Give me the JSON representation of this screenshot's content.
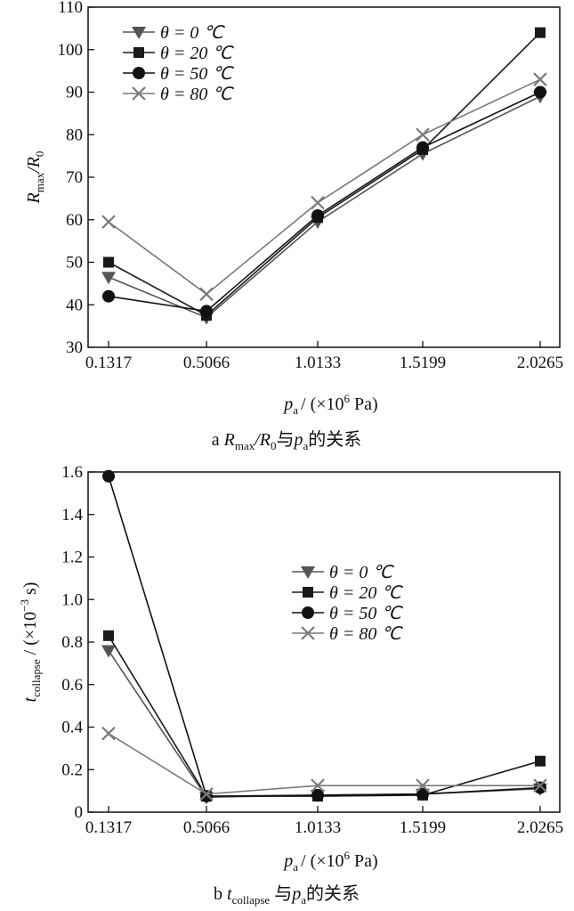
{
  "chart_data": [
    {
      "type": "line",
      "caption": {
        "letter": "a",
        "parts": [
          "R",
          "max",
          "/R",
          "0",
          "与",
          "p",
          "a",
          "的关系"
        ]
      },
      "ylabel": {
        "main": "R",
        "sub": "max",
        "mid": "/R",
        "sub2": "0"
      },
      "xlabel": {
        "main": "p",
        "sub": "a",
        "rest": "/ (×10",
        "exp": "6",
        "unit": " Pa)"
      },
      "categories": [
        "0.1317",
        "0.5066",
        "1.0133",
        "1.5199",
        "2.0265"
      ],
      "ylim": [
        30,
        110
      ],
      "yticks": [
        "30",
        "40",
        "50",
        "60",
        "70",
        "80",
        "90",
        "100",
        "110"
      ],
      "legend_position": "top-left",
      "series": [
        {
          "name": "θ = 0 ℃",
          "marker": "triangle-down",
          "color": "#555555",
          "values": [
            46.5,
            37,
            59.5,
            75.5,
            89
          ]
        },
        {
          "name": "θ = 20 ℃",
          "marker": "square",
          "color": "#1a1a1a",
          "values": [
            50,
            37.5,
            60.5,
            76.5,
            104
          ]
        },
        {
          "name": "θ = 50 ℃",
          "marker": "circle",
          "color": "#111111",
          "values": [
            42,
            38.5,
            61,
            77,
            90
          ]
        },
        {
          "name": "θ = 80 ℃",
          "marker": "x",
          "color": "#7a7a7a",
          "values": [
            59.5,
            42.5,
            64,
            80,
            93
          ]
        }
      ]
    },
    {
      "type": "line",
      "caption": {
        "letter": "b",
        "parts": [
          "t",
          "collapse",
          "与",
          "p",
          "a",
          "的关系"
        ]
      },
      "ylabel": {
        "main": "t",
        "sub": "collapse",
        "rest": "/ (×10",
        "exp": "−3",
        "unit": " s)"
      },
      "xlabel": {
        "main": "p",
        "sub": "a",
        "rest": "/ (×10",
        "exp": "6",
        "unit": " Pa)"
      },
      "categories": [
        "0.1317",
        "0.5066",
        "1.0133",
        "1.5199",
        "2.0265"
      ],
      "ylim": [
        0,
        1.6
      ],
      "yticks": [
        "0",
        "0.2",
        "0.4",
        "0.6",
        "0.8",
        "1.0",
        "1.2",
        "1.4",
        "1.6"
      ],
      "legend_position": "center-right",
      "series": [
        {
          "name": "θ = 0 ℃",
          "marker": "triangle-down",
          "color": "#555555",
          "values": [
            0.76,
            0.07,
            0.08,
            0.085,
            0.11
          ]
        },
        {
          "name": "θ = 20 ℃",
          "marker": "square",
          "color": "#1a1a1a",
          "values": [
            0.83,
            0.075,
            0.075,
            0.08,
            0.24
          ]
        },
        {
          "name": "θ = 50 ℃",
          "marker": "circle",
          "color": "#111111",
          "values": [
            1.58,
            0.075,
            0.08,
            0.085,
            0.115
          ]
        },
        {
          "name": "θ = 80 ℃",
          "marker": "x",
          "color": "#7a7a7a",
          "values": [
            0.37,
            0.085,
            0.125,
            0.125,
            0.125
          ]
        }
      ]
    }
  ]
}
